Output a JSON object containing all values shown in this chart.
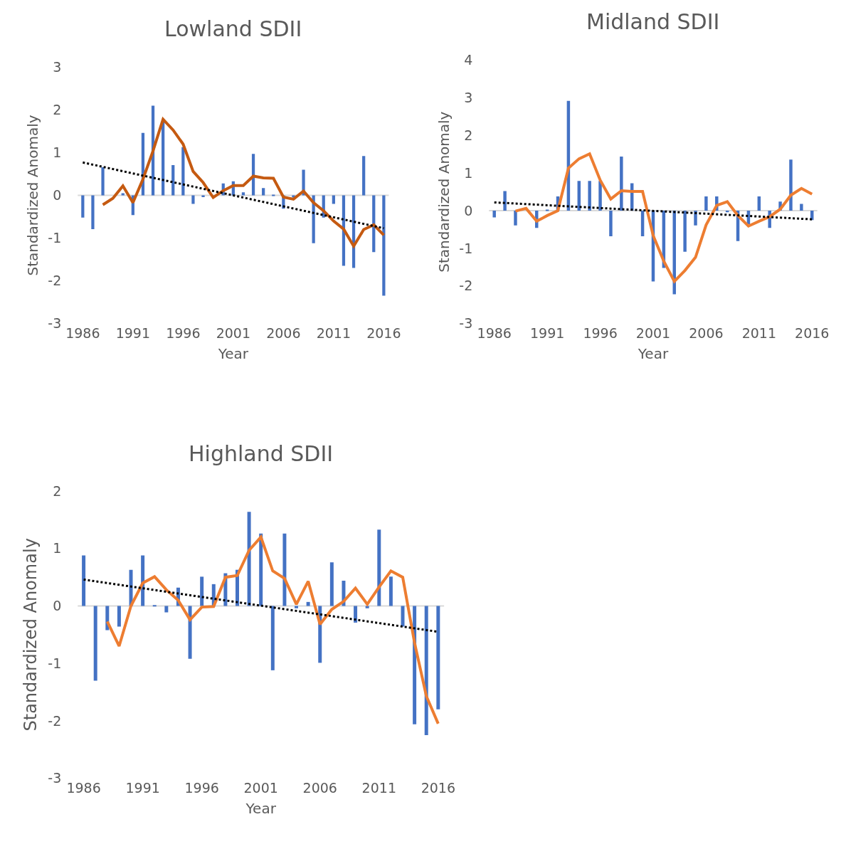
{
  "chart_data": [
    {
      "type": "bar",
      "title": "Lowland SDII",
      "xlabel": "Year",
      "ylabel": "Standardized Anomaly",
      "x": [
        1986,
        1987,
        1988,
        1989,
        1990,
        1991,
        1992,
        1993,
        1994,
        1995,
        1996,
        1997,
        1998,
        1999,
        2000,
        2001,
        2002,
        2003,
        2004,
        2005,
        2006,
        2007,
        2008,
        2009,
        2010,
        2011,
        2012,
        2013,
        2014,
        2015,
        2016
      ],
      "xlim": [
        1985.5,
        2016.5
      ],
      "xticks": [
        1986,
        1991,
        1996,
        2001,
        2006,
        2011,
        2016
      ],
      "ylim": [
        -3,
        3
      ],
      "yticks": [
        -3,
        -2,
        -1,
        0,
        1,
        2,
        3
      ],
      "ref_lines": [
        {
          "axis": "y",
          "value": 0,
          "color": "#d9d9d9"
        }
      ],
      "series": [
        {
          "color": "#4472c4",
          "values": [
            -0.52,
            -0.79,
            0.66,
            null,
            0.05,
            -0.46,
            1.46,
            2.1,
            1.72,
            0.71,
            1.13,
            -0.2,
            -0.04,
            null,
            0.28,
            0.33,
            0.07,
            0.97,
            0.17,
            0.01,
            -0.31,
            -0.05,
            0.6,
            -1.12,
            -0.52,
            -0.2,
            -1.65,
            -1.7,
            0.92,
            -1.33,
            -2.35
          ]
        },
        {
          "type": "line",
          "color": "#c55a11",
          "line_style": "solid",
          "x": [
            1988,
            1989,
            1990,
            1991,
            1992,
            1993,
            1994,
            1995,
            1996,
            1997,
            1998,
            1999,
            2000,
            2001,
            2002,
            2003,
            2004,
            2005,
            2006,
            2007,
            2008,
            2009,
            2010,
            2011,
            2012,
            2013,
            2014,
            2015,
            2016
          ],
          "values": [
            -0.22,
            -0.07,
            0.22,
            -0.17,
            0.38,
            1.04,
            1.78,
            1.53,
            1.2,
            0.56,
            0.3,
            -0.05,
            0.11,
            0.23,
            0.23,
            0.45,
            0.41,
            0.4,
            -0.04,
            -0.09,
            0.1,
            -0.17,
            -0.36,
            -0.6,
            -0.79,
            -1.19,
            -0.8,
            -0.69,
            -0.93
          ]
        },
        {
          "type": "line",
          "color": "#000000",
          "line_style": "dotted",
          "x": [
            1986,
            2016
          ],
          "values": [
            0.77,
            -0.77
          ]
        }
      ]
    },
    {
      "type": "bar",
      "title": "Midland SDII",
      "xlabel": "Year",
      "ylabel": "Standardized Anomaly",
      "x": [
        1986,
        1987,
        1988,
        1989,
        1990,
        1991,
        1992,
        1993,
        1994,
        1995,
        1996,
        1997,
        1998,
        1999,
        2000,
        2001,
        2002,
        2003,
        2004,
        2005,
        2006,
        2007,
        2008,
        2009,
        2010,
        2011,
        2012,
        2013,
        2014,
        2015,
        2016
      ],
      "xlim": [
        1985.5,
        2016.5
      ],
      "xticks": [
        1986,
        1991,
        1996,
        2001,
        2006,
        2011,
        2016
      ],
      "ylim": [
        -3,
        4
      ],
      "yticks": [
        -3,
        -2,
        -1,
        0,
        1,
        2,
        3,
        4
      ],
      "ref_lines": [
        {
          "axis": "y",
          "value": 0,
          "color": "#d9d9d9"
        }
      ],
      "series": [
        {
          "color": "#4472c4",
          "values": [
            -0.18,
            0.52,
            -0.39,
            0,
            -0.46,
            0.03,
            0.38,
            2.92,
            0.79,
            0.79,
            0.79,
            -0.68,
            1.44,
            0.73,
            -0.68,
            -1.88,
            -1.52,
            -2.22,
            -1.09,
            -0.39,
            0.38,
            0.38,
            -0.04,
            -0.81,
            -0.36,
            0.38,
            -0.46,
            0.24,
            1.36,
            0.18,
            -0.25
          ]
        },
        {
          "type": "line",
          "color": "#ed7d31",
          "line_style": "solid",
          "x": [
            1988,
            1989,
            1990,
            1991,
            1992,
            1993,
            1994,
            1995,
            1996,
            1997,
            1998,
            1999,
            2000,
            2001,
            2002,
            2003,
            2004,
            2005,
            2006,
            2007,
            2008,
            2009,
            2010,
            2011,
            2012,
            2013,
            2014,
            2015,
            2016
          ],
          "values": [
            -0.01,
            0.06,
            -0.28,
            -0.13,
            0.0,
            1.13,
            1.38,
            1.51,
            0.81,
            0.31,
            0.53,
            0.51,
            0.51,
            -0.66,
            -1.34,
            -1.88,
            -1.59,
            -1.24,
            -0.38,
            0.14,
            0.24,
            -0.13,
            -0.41,
            -0.28,
            -0.16,
            0.04,
            0.41,
            0.59,
            0.44
          ]
        },
        {
          "type": "line",
          "color": "#000000",
          "line_style": "dotted",
          "x": [
            1986,
            2016
          ],
          "values": [
            0.22,
            -0.23
          ]
        }
      ]
    },
    {
      "type": "bar",
      "title": "Highland SDII",
      "xlabel": "Year",
      "ylabel": "Standardized Anomaly",
      "x": [
        1986,
        1987,
        1988,
        1989,
        1990,
        1991,
        1992,
        1993,
        1994,
        1995,
        1996,
        1997,
        1998,
        1999,
        2000,
        2001,
        2002,
        2003,
        2004,
        2005,
        2006,
        2007,
        2008,
        2009,
        2010,
        2011,
        2012,
        2013,
        2014,
        2015,
        2016
      ],
      "xlim": [
        1985.5,
        2016.5
      ],
      "xticks": [
        1986,
        1991,
        1996,
        2001,
        2006,
        2011,
        2016
      ],
      "ylim": [
        -3,
        2
      ],
      "yticks": [
        -3,
        -2,
        -1,
        0,
        1,
        2
      ],
      "ref_lines": [
        {
          "axis": "y",
          "value": 0,
          "color": "#d9d9d9"
        }
      ],
      "series": [
        {
          "color": "#4472c4",
          "values": [
            0.88,
            -1.3,
            -0.42,
            -0.36,
            0.63,
            0.88,
            0.01,
            -0.11,
            0.32,
            -0.92,
            0.51,
            0.38,
            0.57,
            0.63,
            1.64,
            1.26,
            -1.12,
            1.26,
            -0.04,
            0.07,
            -0.99,
            0.76,
            0.44,
            -0.29,
            -0.04,
            1.33,
            0.51,
            -0.36,
            -2.06,
            -2.25,
            -1.8
          ]
        },
        {
          "type": "line",
          "color": "#ed7d31",
          "line_style": "solid",
          "x": [
            1988,
            1989,
            1990,
            1991,
            1992,
            1993,
            1994,
            1995,
            1996,
            1997,
            1998,
            1999,
            2000,
            2001,
            2002,
            2003,
            2004,
            2005,
            2006,
            2007,
            2008,
            2009,
            2010,
            2011,
            2012,
            2013,
            2014,
            2015,
            2016
          ],
          "values": [
            -0.27,
            -0.7,
            0.0,
            0.4,
            0.51,
            0.28,
            0.1,
            -0.24,
            -0.02,
            -0.01,
            0.5,
            0.53,
            0.97,
            1.2,
            0.61,
            0.48,
            0.03,
            0.43,
            -0.32,
            -0.06,
            0.08,
            0.31,
            0.03,
            0.33,
            0.61,
            0.5,
            -0.64,
            -1.57,
            -2.05
          ]
        },
        {
          "type": "line",
          "color": "#000000",
          "line_style": "dotted",
          "x": [
            1986,
            2016
          ],
          "values": [
            0.46,
            -0.45
          ]
        }
      ]
    }
  ]
}
